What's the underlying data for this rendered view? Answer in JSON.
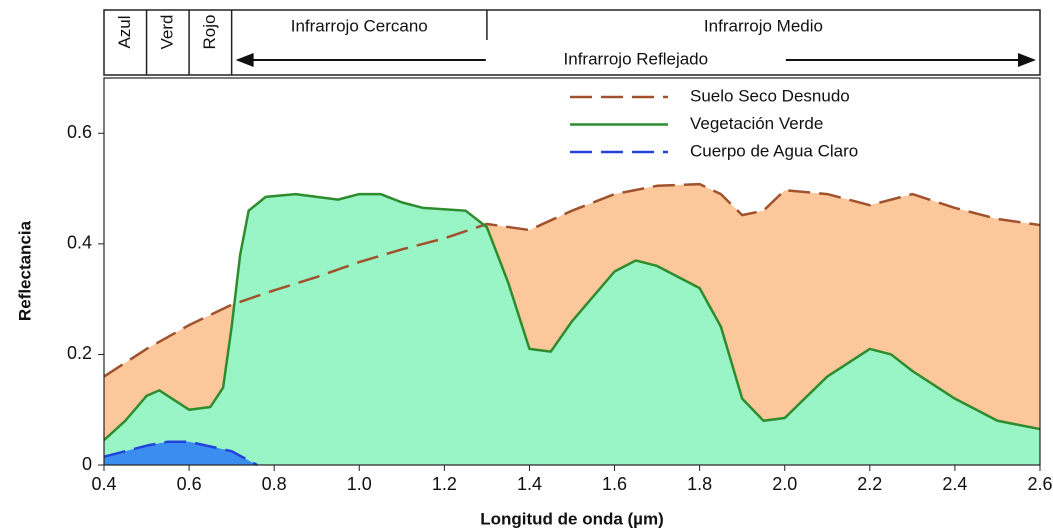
{
  "chart_data": {
    "type": "area",
    "y_label": "Reflectancia",
    "x_label": "Longitud de onda (µm)",
    "xlim": [
      0.4,
      2.6
    ],
    "ylim": [
      0,
      0.7
    ],
    "xticks": [
      0.4,
      0.6,
      0.8,
      {
        "value": 1,
        "label": "1.0"
      },
      1.2,
      1.4,
      1.6,
      1.8,
      {
        "value": 2,
        "label": "2.0"
      },
      2.2,
      2.4,
      2.6
    ],
    "yticks": [
      0,
      0.2,
      0.4,
      0.6
    ],
    "bands": [
      {
        "label": "Azul",
        "range": [
          0.4,
          0.5
        ]
      },
      {
        "label": "Verd",
        "range": [
          0.5,
          0.6
        ]
      },
      {
        "label": "Rojo",
        "range": [
          0.6,
          0.7
        ]
      },
      {
        "label": "Infrarrojo Cercano",
        "range": [
          0.7,
          1.3
        ]
      },
      {
        "label": "Infrarrojo Medio",
        "range": [
          1.3,
          2.6
        ]
      }
    ],
    "arrow_band": {
      "label": "Infrarrojo Reflejado",
      "range": [
        0.7,
        2.6
      ]
    },
    "series": [
      {
        "name": "Suelo Seco Desnudo",
        "color": "#a0522d",
        "fill": "#fcc79a",
        "dash": "dashed",
        "x": [
          0.4,
          0.5,
          0.6,
          0.7,
          0.8,
          0.9,
          1.0,
          1.1,
          1.2,
          1.3,
          1.4,
          1.5,
          1.6,
          1.7,
          1.8,
          1.85,
          1.9,
          1.95,
          2.0,
          2.1,
          2.2,
          2.3,
          2.4,
          2.5,
          2.6
        ],
        "values": [
          0.16,
          0.21,
          0.253,
          0.29,
          0.316,
          0.34,
          0.367,
          0.39,
          0.41,
          0.436,
          0.425,
          0.46,
          0.49,
          0.505,
          0.508,
          0.49,
          0.452,
          0.46,
          0.497,
          0.49,
          0.47,
          0.49,
          0.465,
          0.445,
          0.434
        ]
      },
      {
        "name": "Vegetación Verde",
        "color": "#2e8b2e",
        "fill": "#9af5c6",
        "dash": "solid",
        "x": [
          0.4,
          0.45,
          0.5,
          0.53,
          0.56,
          0.6,
          0.65,
          0.68,
          0.7,
          0.72,
          0.74,
          0.78,
          0.85,
          0.95,
          1.0,
          1.05,
          1.1,
          1.15,
          1.25,
          1.3,
          1.35,
          1.4,
          1.45,
          1.5,
          1.6,
          1.65,
          1.7,
          1.8,
          1.85,
          1.9,
          1.95,
          2.0,
          2.1,
          2.2,
          2.25,
          2.3,
          2.4,
          2.5,
          2.6
        ],
        "values": [
          0.045,
          0.08,
          0.125,
          0.135,
          0.12,
          0.1,
          0.105,
          0.14,
          0.25,
          0.38,
          0.46,
          0.485,
          0.49,
          0.48,
          0.49,
          0.49,
          0.475,
          0.465,
          0.46,
          0.43,
          0.33,
          0.21,
          0.205,
          0.26,
          0.35,
          0.37,
          0.36,
          0.32,
          0.25,
          0.12,
          0.08,
          0.085,
          0.16,
          0.21,
          0.2,
          0.17,
          0.12,
          0.08,
          0.065
        ]
      },
      {
        "name": "Cuerpo de Agua Claro",
        "color": "#2244dd",
        "fill": "#3b8df0",
        "dash": "dashed",
        "x": [
          0.4,
          0.5,
          0.55,
          0.6,
          0.7,
          0.76
        ],
        "values": [
          0.015,
          0.035,
          0.042,
          0.042,
          0.025,
          0
        ]
      }
    ]
  }
}
